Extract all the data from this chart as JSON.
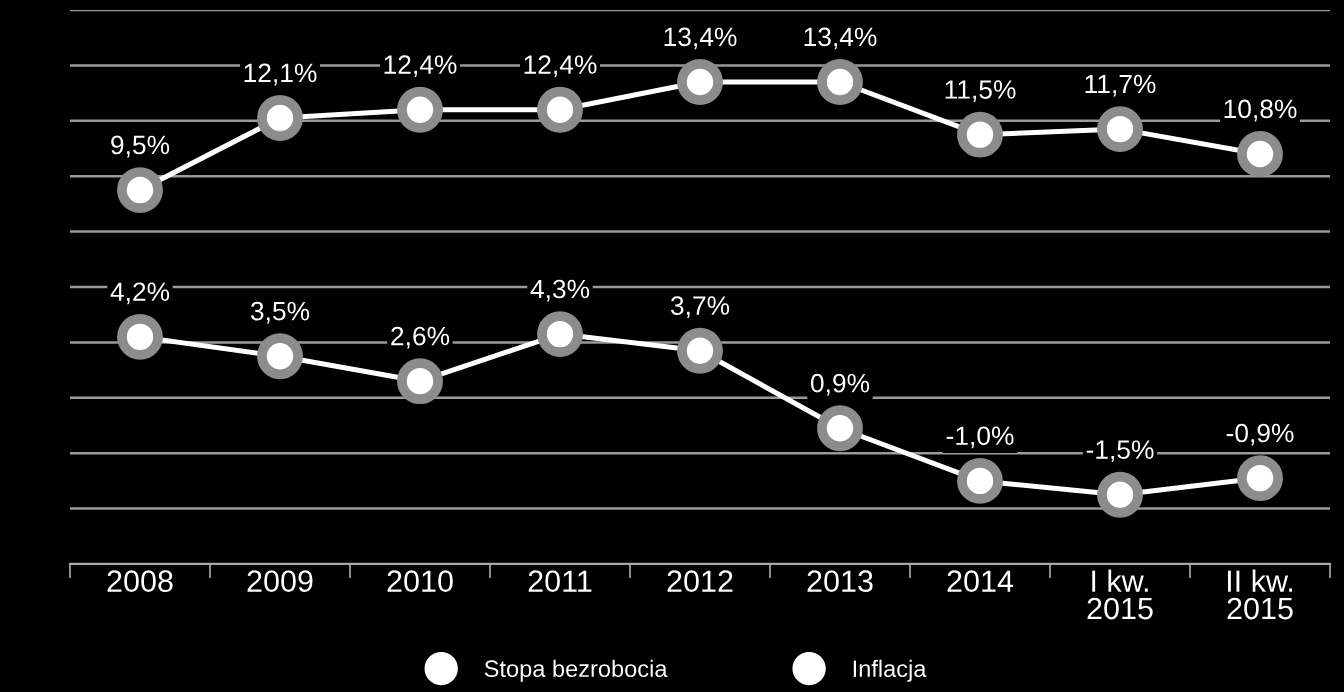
{
  "chart_data": {
    "type": "line",
    "categories": [
      "2008",
      "2009",
      "2010",
      "2011",
      "2012",
      "2013",
      "2014",
      "I kw.\n2015",
      "II kw.\n2015"
    ],
    "series": [
      {
        "name": "Stopa bezrobocia",
        "color": "#ffffff",
        "values": [
          9.5,
          12.1,
          12.4,
          12.4,
          13.4,
          13.4,
          11.5,
          11.7,
          10.8
        ],
        "value_labels": [
          "9,5%",
          "12,1%",
          "12,4%",
          "12,4%",
          "13,4%",
          "13,4%",
          "11,5%",
          "11,7%",
          "10,8%"
        ]
      },
      {
        "name": "Inflacja",
        "color": "#ffffff",
        "values": [
          4.2,
          3.5,
          2.6,
          4.3,
          3.7,
          0.9,
          -1.0,
          -1.5,
          -0.9
        ],
        "value_labels": [
          "4,2%",
          "3,5%",
          "2,6%",
          "4,3%",
          "3,7%",
          "0,9%",
          "-1,0%",
          "-1,5%",
          "-0,9%"
        ]
      }
    ],
    "ylim": [
      -4,
      16
    ],
    "yticks": [
      {
        "value": -4,
        "label": null
      },
      {
        "value": -2,
        "label": null
      },
      {
        "value": 0,
        "label": null
      },
      {
        "value": 2,
        "label": null
      },
      {
        "value": 4,
        "label": null
      },
      {
        "value": 6,
        "label": null
      },
      {
        "value": 8,
        "label": null
      },
      {
        "value": 10,
        "label": null
      },
      {
        "value": 12,
        "label": null
      },
      {
        "value": 14,
        "label": null
      },
      {
        "value": 16,
        "label": null
      }
    ],
    "tick_labels": "x",
    "grid": "y",
    "legend": "bottom",
    "marker": "circle",
    "line_style": "solid"
  }
}
